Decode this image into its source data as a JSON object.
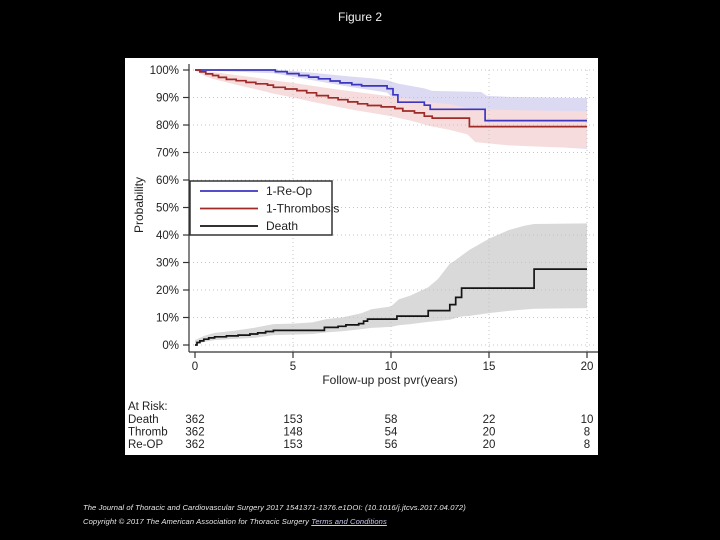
{
  "page": {
    "title": "Figure 2",
    "background": "#000000",
    "panel_background": "#ffffff"
  },
  "footer": {
    "line1": "The Journal of Thoracic and Cardiovascular Surgery 2017 1541371-1376.e1DOI: (10.1016/j.jtcvs.2017.04.072)",
    "line2_prefix": "Copyright © 2017 The American Association for Thoracic Surgery ",
    "link_text": "Terms and Conditions"
  },
  "chart_data": {
    "type": "line",
    "subtype": "kaplan-meier-step",
    "title": "Figure 2",
    "xlabel": "Follow-up post pvr(years)",
    "ylabel": "Probability",
    "xlim": [
      0,
      20
    ],
    "ylim": [
      0,
      100
    ],
    "xticks": [
      0,
      5,
      10,
      15,
      20
    ],
    "yticks": [
      0,
      10,
      20,
      30,
      40,
      50,
      60,
      70,
      80,
      90,
      100
    ],
    "ytick_suffix": "%",
    "grid": true,
    "colors": {
      "reop_line": "#3b35c0",
      "reop_band": "#dcd9f3",
      "thrombosis_line": "#9e2b28",
      "thrombosis_band": "#f6dcdc",
      "death_line": "#141414",
      "death_band": "#d9d9d9",
      "grid": "#c4c4c4",
      "axis": "#333333",
      "text": "#222222"
    },
    "legend": {
      "position": "left-middle",
      "entries": [
        {
          "label": "1-Re-Op",
          "color": "#3b35c0"
        },
        {
          "label": "1-Thrombosis",
          "color": "#9e2b28"
        },
        {
          "label": "Death",
          "color": "#141414"
        }
      ]
    },
    "series": [
      {
        "name": "1-Re-Op",
        "color": "#3b35c0",
        "band_color": "#dcd9f3",
        "points": [
          [
            0,
            100
          ],
          [
            3.8,
            100
          ],
          [
            4.1,
            99.4
          ],
          [
            4.7,
            98.7
          ],
          [
            5.3,
            98.0
          ],
          [
            5.8,
            97.4
          ],
          [
            6.3,
            96.8
          ],
          [
            6.9,
            96.0
          ],
          [
            7.4,
            95.3
          ],
          [
            8.0,
            94.7
          ],
          [
            8.5,
            94.2
          ],
          [
            9.6,
            94.2
          ],
          [
            9.8,
            93.2
          ],
          [
            10.1,
            91.0
          ],
          [
            10.35,
            88.3
          ],
          [
            11.5,
            88.3
          ],
          [
            11.7,
            87.2
          ],
          [
            12.0,
            85.7
          ],
          [
            14.6,
            85.7
          ],
          [
            14.8,
            81.6
          ],
          [
            20,
            81.6
          ]
        ],
        "band_upper": [
          [
            0,
            100
          ],
          [
            4,
            100
          ],
          [
            5,
            99.6
          ],
          [
            6,
            99.0
          ],
          [
            7,
            98.3
          ],
          [
            8,
            97.6
          ],
          [
            9,
            97.0
          ],
          [
            9.8,
            96.3
          ],
          [
            10.4,
            95.0
          ],
          [
            11,
            94.2
          ],
          [
            11.7,
            93.3
          ],
          [
            12.1,
            92.4
          ],
          [
            14.6,
            92.0
          ],
          [
            14.9,
            90.6
          ],
          [
            16,
            90.2
          ],
          [
            20,
            89.8
          ]
        ],
        "band_lower": [
          [
            0,
            100
          ],
          [
            4,
            98.8
          ],
          [
            5,
            97.6
          ],
          [
            6,
            96.3
          ],
          [
            7,
            95.0
          ],
          [
            8,
            93.7
          ],
          [
            9,
            92.7
          ],
          [
            9.8,
            91.8
          ],
          [
            10.4,
            87.6
          ],
          [
            11,
            85.0
          ],
          [
            11.7,
            83.3
          ],
          [
            12.1,
            81.8
          ],
          [
            13,
            81.0
          ],
          [
            14.6,
            80.4
          ],
          [
            15,
            76.2
          ],
          [
            16,
            74.0
          ],
          [
            17.5,
            72.4
          ],
          [
            20,
            71.3
          ]
        ]
      },
      {
        "name": "1-Thrombosis",
        "color": "#9e2b28",
        "band_color": "#f6dcdc",
        "points": [
          [
            0,
            100
          ],
          [
            0.25,
            99.3
          ],
          [
            0.55,
            98.6
          ],
          [
            0.9,
            98.0
          ],
          [
            1.2,
            97.3
          ],
          [
            1.6,
            96.6
          ],
          [
            2.1,
            96.1
          ],
          [
            2.6,
            95.5
          ],
          [
            3.1,
            95.0
          ],
          [
            3.7,
            94.5
          ],
          [
            4.0,
            93.7
          ],
          [
            4.6,
            93.1
          ],
          [
            5.2,
            92.5
          ],
          [
            5.7,
            91.7
          ],
          [
            6.2,
            90.7
          ],
          [
            6.8,
            89.9
          ],
          [
            7.3,
            89.2
          ],
          [
            7.8,
            88.4
          ],
          [
            8.3,
            87.7
          ],
          [
            8.8,
            87.1
          ],
          [
            9.5,
            86.6
          ],
          [
            10.2,
            86.0
          ],
          [
            10.6,
            85.1
          ],
          [
            11.2,
            84.4
          ],
          [
            11.7,
            83.2
          ],
          [
            12.1,
            82.5
          ],
          [
            13.8,
            82.5
          ],
          [
            14.0,
            79.4
          ],
          [
            20,
            79.4
          ]
        ],
        "band_upper": [
          [
            0,
            100
          ],
          [
            0.5,
            99.6
          ],
          [
            1,
            99.2
          ],
          [
            2,
            98.2
          ],
          [
            3,
            97.3
          ],
          [
            4,
            96.2
          ],
          [
            5,
            95.3
          ],
          [
            6,
            94.2
          ],
          [
            7,
            93.2
          ],
          [
            8,
            92.2
          ],
          [
            9,
            91.3
          ],
          [
            10,
            90.4
          ],
          [
            11,
            89.4
          ],
          [
            12,
            88.2
          ],
          [
            13,
            87.6
          ],
          [
            14,
            86.0
          ],
          [
            16,
            85.4
          ],
          [
            20,
            85.0
          ]
        ],
        "band_lower": [
          [
            0,
            100
          ],
          [
            0.5,
            97.8
          ],
          [
            1,
            96.6
          ],
          [
            2,
            94.8
          ],
          [
            3,
            93.2
          ],
          [
            4,
            91.4
          ],
          [
            5,
            90.0
          ],
          [
            6,
            88.4
          ],
          [
            7,
            87.0
          ],
          [
            8,
            85.6
          ],
          [
            9,
            84.4
          ],
          [
            10,
            83.2
          ],
          [
            11,
            81.6
          ],
          [
            12,
            79.6
          ],
          [
            13,
            78.2
          ],
          [
            13.9,
            76.6
          ],
          [
            14.3,
            73.8
          ],
          [
            16,
            72.6
          ],
          [
            18,
            72.0
          ],
          [
            20,
            71.6
          ]
        ]
      },
      {
        "name": "Death",
        "color": "#141414",
        "band_color": "#d9d9d9",
        "points": [
          [
            0,
            0
          ],
          [
            0.1,
            0.9
          ],
          [
            0.25,
            1.5
          ],
          [
            0.45,
            2.1
          ],
          [
            0.7,
            2.6
          ],
          [
            1.0,
            3.0
          ],
          [
            1.6,
            3.3
          ],
          [
            2.2,
            3.6
          ],
          [
            2.8,
            4.0
          ],
          [
            3.2,
            4.4
          ],
          [
            3.6,
            4.9
          ],
          [
            4.0,
            5.3
          ],
          [
            6.5,
            5.3
          ],
          [
            6.6,
            6.4
          ],
          [
            7.3,
            6.8
          ],
          [
            7.7,
            7.3
          ],
          [
            8.35,
            7.8
          ],
          [
            8.6,
            8.7
          ],
          [
            8.8,
            9.4
          ],
          [
            10.2,
            9.4
          ],
          [
            10.3,
            10.5
          ],
          [
            11.85,
            10.5
          ],
          [
            11.9,
            12.5
          ],
          [
            12.9,
            12.5
          ],
          [
            13.0,
            14.7
          ],
          [
            13.3,
            17.3
          ],
          [
            13.6,
            20.7
          ],
          [
            17.2,
            20.7
          ],
          [
            17.3,
            27.6
          ],
          [
            20,
            27.6
          ]
        ],
        "band_upper": [
          [
            0,
            1.8
          ],
          [
            0.5,
            3.4
          ],
          [
            1,
            4.4
          ],
          [
            2,
            5.2
          ],
          [
            3,
            6.2
          ],
          [
            4,
            7.6
          ],
          [
            5,
            7.8
          ],
          [
            6,
            8.2
          ],
          [
            6.7,
            9.4
          ],
          [
            7.5,
            10.0
          ],
          [
            8.5,
            11.6
          ],
          [
            9,
            13.0
          ],
          [
            10,
            14.0
          ],
          [
            10.4,
            16.6
          ],
          [
            11,
            18.0
          ],
          [
            11.9,
            21.0
          ],
          [
            12.4,
            24.0
          ],
          [
            13.0,
            29.6
          ],
          [
            13.2,
            30.4
          ],
          [
            14,
            34.6
          ],
          [
            15,
            38.6
          ],
          [
            16,
            41.8
          ],
          [
            16.8,
            43.4
          ],
          [
            17.3,
            44.0
          ],
          [
            20,
            44.2
          ]
        ],
        "band_lower": [
          [
            0,
            0.2
          ],
          [
            0.5,
            1.2
          ],
          [
            1,
            1.8
          ],
          [
            2,
            2.2
          ],
          [
            3,
            2.6
          ],
          [
            4,
            3.6
          ],
          [
            5,
            3.8
          ],
          [
            6,
            4.0
          ],
          [
            6.7,
            4.6
          ],
          [
            7.5,
            5.0
          ],
          [
            8.5,
            5.8
          ],
          [
            9,
            6.2
          ],
          [
            10,
            6.6
          ],
          [
            10.4,
            7.2
          ],
          [
            11,
            7.6
          ],
          [
            11.9,
            8.4
          ],
          [
            13,
            9.2
          ],
          [
            13.6,
            10.4
          ],
          [
            14,
            10.6
          ],
          [
            15,
            11.6
          ],
          [
            16,
            12.4
          ],
          [
            17.3,
            13.2
          ],
          [
            20,
            13.4
          ]
        ]
      }
    ],
    "at_risk": {
      "header": "At Risk:",
      "times": [
        0,
        5,
        10,
        15,
        20
      ],
      "rows": [
        {
          "label": "Death",
          "values": [
            "362",
            "153",
            "58",
            "22",
            "10"
          ]
        },
        {
          "label": "Thromb",
          "values": [
            "362",
            "148",
            "54",
            "20",
            "8"
          ]
        },
        {
          "label": "Re-OP",
          "values": [
            "362",
            "153",
            "56",
            "20",
            "8"
          ]
        }
      ]
    }
  }
}
